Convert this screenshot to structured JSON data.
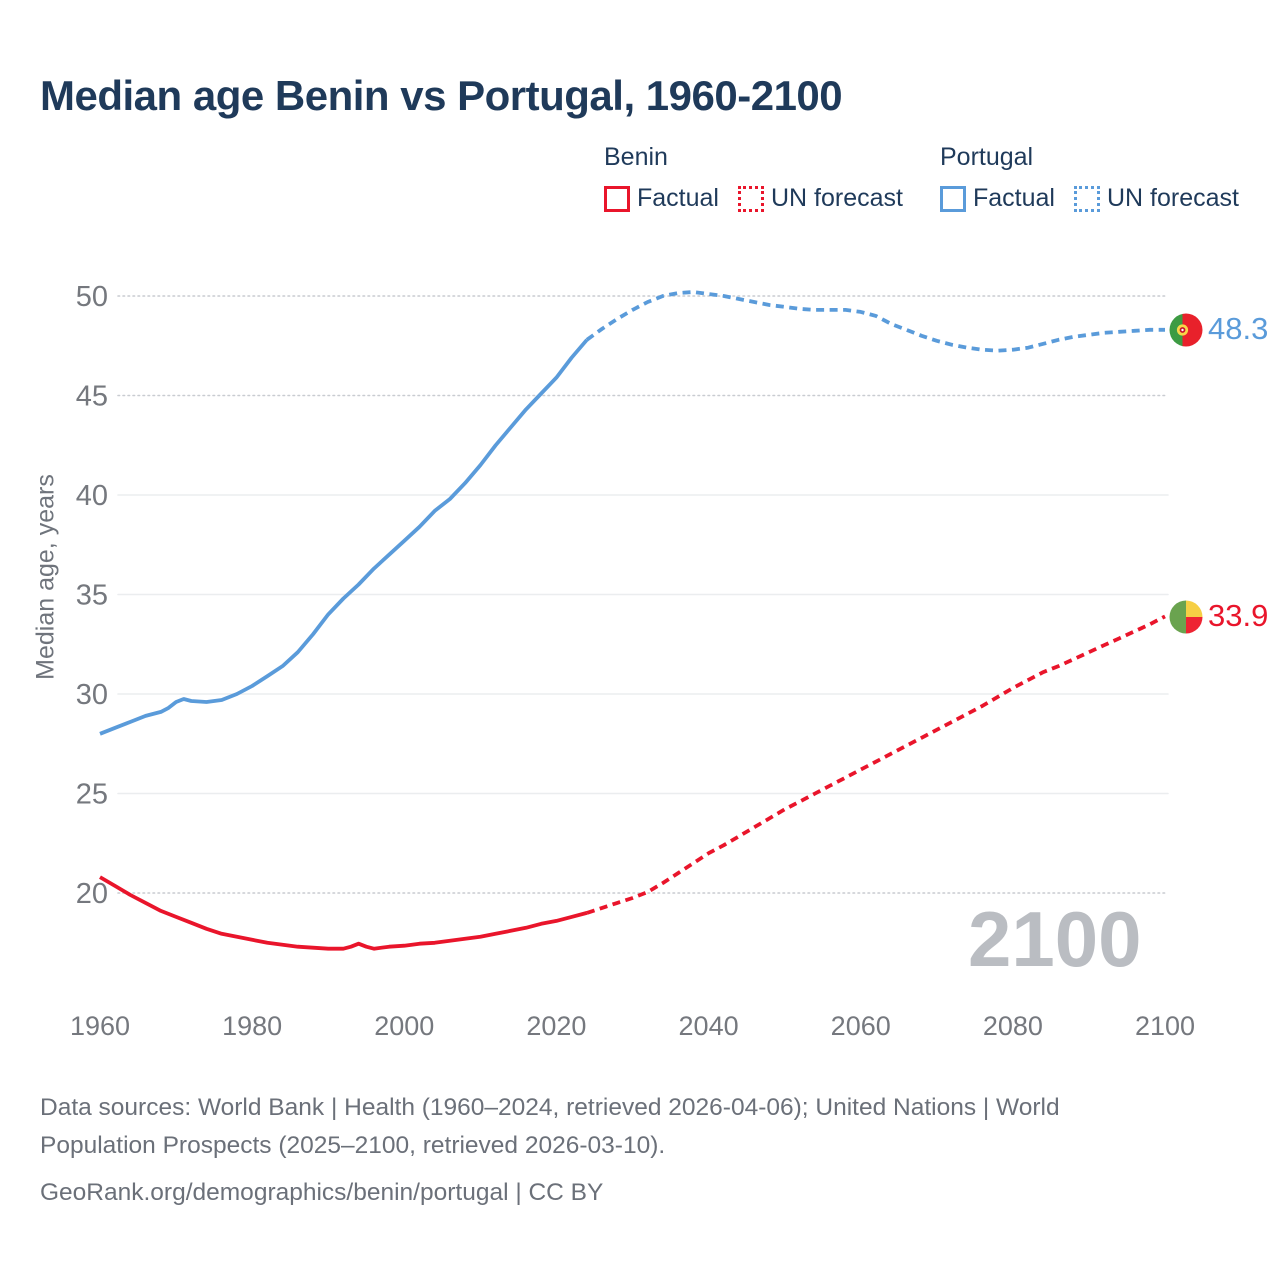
{
  "title": "Median age Benin vs Portugal, 1960-2100",
  "legend": {
    "groups": [
      {
        "name": "Benin",
        "color": "#e9152b",
        "items": [
          {
            "label": "Factual",
            "style": "solid"
          },
          {
            "label": "UN forecast",
            "style": "dotted"
          }
        ]
      },
      {
        "name": "Portugal",
        "color": "#5a9bda",
        "items": [
          {
            "label": "Factual",
            "style": "solid"
          },
          {
            "label": "UN forecast",
            "style": "dotted"
          }
        ]
      }
    ]
  },
  "y_axis": {
    "title": "Median age, years",
    "ticks": [
      50,
      45,
      40,
      35,
      30,
      25,
      20
    ]
  },
  "x_axis": {
    "ticks": [
      1960,
      1980,
      2000,
      2020,
      2040,
      2060,
      2080,
      2100
    ]
  },
  "end_labels": {
    "portugal": {
      "value": "48.3",
      "flag": "portugal-flag"
    },
    "benin": {
      "value": "33.9",
      "flag": "benin-flag"
    }
  },
  "watermark": "2100",
  "footer": {
    "lines": [
      "Data sources: World Bank | Health (1960–2024, retrieved 2026-04-06); United Nations | World",
      "Population Prospects (2025–2100, retrieved 2026-03-10).",
      "GeoRank.org/demographics/benin/portugal | CC BY"
    ]
  },
  "chart_data": {
    "type": "line",
    "title": "Median age Benin vs Portugal, 1960-2100",
    "xlabel": "",
    "ylabel": "Median age, years",
    "x_range": [
      1960,
      2100
    ],
    "x_ticks": [
      1960,
      1980,
      2000,
      2020,
      2040,
      2060,
      2080,
      2100
    ],
    "y_ticks": [
      50,
      45,
      40,
      35,
      30,
      25,
      20
    ],
    "dotted_gridlines": [
      50,
      45,
      20
    ],
    "grid": true,
    "legend_position": "top-right",
    "end_values": {
      "portugal": 48.3,
      "benin": 33.9
    },
    "forecast_start_year": 2025,
    "series": [
      {
        "name": "Benin Factual",
        "color": "#e9152b",
        "forecast": false,
        "points": [
          [
            1960,
            20.8
          ],
          [
            1962,
            20.35
          ],
          [
            1964,
            19.9
          ],
          [
            1966,
            19.5
          ],
          [
            1968,
            19.1
          ],
          [
            1970,
            18.8
          ],
          [
            1972,
            18.5
          ],
          [
            1974,
            18.2
          ],
          [
            1976,
            17.95
          ],
          [
            1978,
            17.8
          ],
          [
            1980,
            17.65
          ],
          [
            1982,
            17.5
          ],
          [
            1984,
            17.4
          ],
          [
            1986,
            17.3
          ],
          [
            1988,
            17.25
          ],
          [
            1990,
            17.2
          ],
          [
            1992,
            17.2
          ],
          [
            1993,
            17.3
          ],
          [
            1994,
            17.45
          ],
          [
            1995,
            17.3
          ],
          [
            1996,
            17.2
          ],
          [
            1998,
            17.3
          ],
          [
            2000,
            17.35
          ],
          [
            2002,
            17.45
          ],
          [
            2004,
            17.5
          ],
          [
            2006,
            17.6
          ],
          [
            2008,
            17.7
          ],
          [
            2010,
            17.8
          ],
          [
            2012,
            17.95
          ],
          [
            2014,
            18.1
          ],
          [
            2016,
            18.25
          ],
          [
            2018,
            18.45
          ],
          [
            2020,
            18.6
          ],
          [
            2022,
            18.8
          ],
          [
            2024,
            19.0
          ]
        ]
      },
      {
        "name": "Benin UN forecast",
        "color": "#e9152b",
        "forecast": true,
        "points": [
          [
            2024,
            19.0
          ],
          [
            2026,
            19.25
          ],
          [
            2028,
            19.5
          ],
          [
            2030,
            19.75
          ],
          [
            2032,
            20.05
          ],
          [
            2034,
            20.5
          ],
          [
            2036,
            21.0
          ],
          [
            2038,
            21.5
          ],
          [
            2040,
            22.0
          ],
          [
            2042,
            22.4
          ],
          [
            2044,
            22.85
          ],
          [
            2046,
            23.3
          ],
          [
            2048,
            23.75
          ],
          [
            2050,
            24.2
          ],
          [
            2052,
            24.6
          ],
          [
            2054,
            25.0
          ],
          [
            2056,
            25.4
          ],
          [
            2058,
            25.8
          ],
          [
            2060,
            26.2
          ],
          [
            2062,
            26.6
          ],
          [
            2064,
            27.0
          ],
          [
            2066,
            27.4
          ],
          [
            2068,
            27.8
          ],
          [
            2070,
            28.2
          ],
          [
            2072,
            28.6
          ],
          [
            2074,
            29.0
          ],
          [
            2076,
            29.4
          ],
          [
            2078,
            29.85
          ],
          [
            2080,
            30.3
          ],
          [
            2082,
            30.7
          ],
          [
            2084,
            31.1
          ],
          [
            2086,
            31.4
          ],
          [
            2088,
            31.75
          ],
          [
            2090,
            32.1
          ],
          [
            2092,
            32.45
          ],
          [
            2094,
            32.8
          ],
          [
            2096,
            33.15
          ],
          [
            2098,
            33.5
          ],
          [
            2100,
            33.9
          ]
        ]
      },
      {
        "name": "Portugal Factual",
        "color": "#5a9bda",
        "forecast": false,
        "points": [
          [
            1960,
            28.0
          ],
          [
            1962,
            28.3
          ],
          [
            1964,
            28.6
          ],
          [
            1966,
            28.9
          ],
          [
            1968,
            29.1
          ],
          [
            1969,
            29.3
          ],
          [
            1970,
            29.6
          ],
          [
            1971,
            29.75
          ],
          [
            1972,
            29.65
          ],
          [
            1974,
            29.6
          ],
          [
            1976,
            29.7
          ],
          [
            1977,
            29.85
          ],
          [
            1978,
            30.0
          ],
          [
            1980,
            30.4
          ],
          [
            1982,
            30.9
          ],
          [
            1984,
            31.4
          ],
          [
            1986,
            32.1
          ],
          [
            1988,
            33.0
          ],
          [
            1990,
            34.0
          ],
          [
            1992,
            34.8
          ],
          [
            1994,
            35.5
          ],
          [
            1996,
            36.3
          ],
          [
            1998,
            37.0
          ],
          [
            2000,
            37.7
          ],
          [
            2002,
            38.4
          ],
          [
            2004,
            39.2
          ],
          [
            2006,
            39.8
          ],
          [
            2008,
            40.6
          ],
          [
            2010,
            41.5
          ],
          [
            2012,
            42.5
          ],
          [
            2014,
            43.4
          ],
          [
            2016,
            44.3
          ],
          [
            2018,
            45.1
          ],
          [
            2020,
            45.9
          ],
          [
            2022,
            46.9
          ],
          [
            2024,
            47.8
          ]
        ]
      },
      {
        "name": "Portugal UN forecast",
        "color": "#5a9bda",
        "forecast": true,
        "points": [
          [
            2024,
            47.8
          ],
          [
            2026,
            48.35
          ],
          [
            2028,
            48.85
          ],
          [
            2030,
            49.3
          ],
          [
            2032,
            49.7
          ],
          [
            2034,
            50.0
          ],
          [
            2036,
            50.15
          ],
          [
            2038,
            50.2
          ],
          [
            2040,
            50.1
          ],
          [
            2042,
            50.0
          ],
          [
            2044,
            49.85
          ],
          [
            2046,
            49.7
          ],
          [
            2048,
            49.55
          ],
          [
            2050,
            49.45
          ],
          [
            2052,
            49.35
          ],
          [
            2054,
            49.3
          ],
          [
            2056,
            49.3
          ],
          [
            2058,
            49.3
          ],
          [
            2060,
            49.2
          ],
          [
            2062,
            49.0
          ],
          [
            2064,
            48.6
          ],
          [
            2066,
            48.3
          ],
          [
            2068,
            48.0
          ],
          [
            2070,
            47.75
          ],
          [
            2072,
            47.55
          ],
          [
            2074,
            47.4
          ],
          [
            2076,
            47.3
          ],
          [
            2078,
            47.25
          ],
          [
            2080,
            47.3
          ],
          [
            2082,
            47.4
          ],
          [
            2084,
            47.6
          ],
          [
            2086,
            47.8
          ],
          [
            2088,
            47.95
          ],
          [
            2090,
            48.05
          ],
          [
            2092,
            48.15
          ],
          [
            2094,
            48.2
          ],
          [
            2096,
            48.25
          ],
          [
            2098,
            48.3
          ],
          [
            2100,
            48.3
          ]
        ]
      }
    ]
  }
}
